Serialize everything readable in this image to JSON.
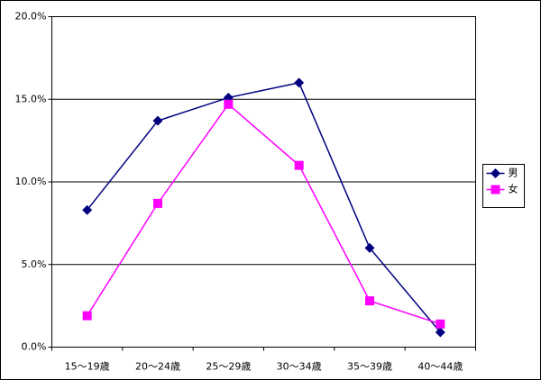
{
  "chart_data": {
    "type": "line",
    "categories": [
      "15～19歳",
      "20～24歳",
      "25～29歳",
      "30～34歳",
      "35～39歳",
      "40～44歳"
    ],
    "series": [
      {
        "name": "男",
        "color": "#000080",
        "marker": "diamond",
        "values": [
          8.3,
          13.7,
          15.1,
          16.0,
          6.0,
          0.9
        ]
      },
      {
        "name": "女",
        "color": "#ff00ff",
        "marker": "square",
        "values": [
          1.9,
          8.7,
          14.7,
          11.0,
          2.8,
          1.4
        ]
      }
    ],
    "ylim": [
      0,
      20
    ],
    "yticks": [
      {
        "value": 0,
        "label": "0.0%"
      },
      {
        "value": 5,
        "label": "5.0%"
      },
      {
        "value": 10,
        "label": "10.0%"
      },
      {
        "value": 15,
        "label": "15.0%"
      },
      {
        "value": 20,
        "label": "20.0%"
      }
    ],
    "grid": true,
    "legend": "right"
  }
}
